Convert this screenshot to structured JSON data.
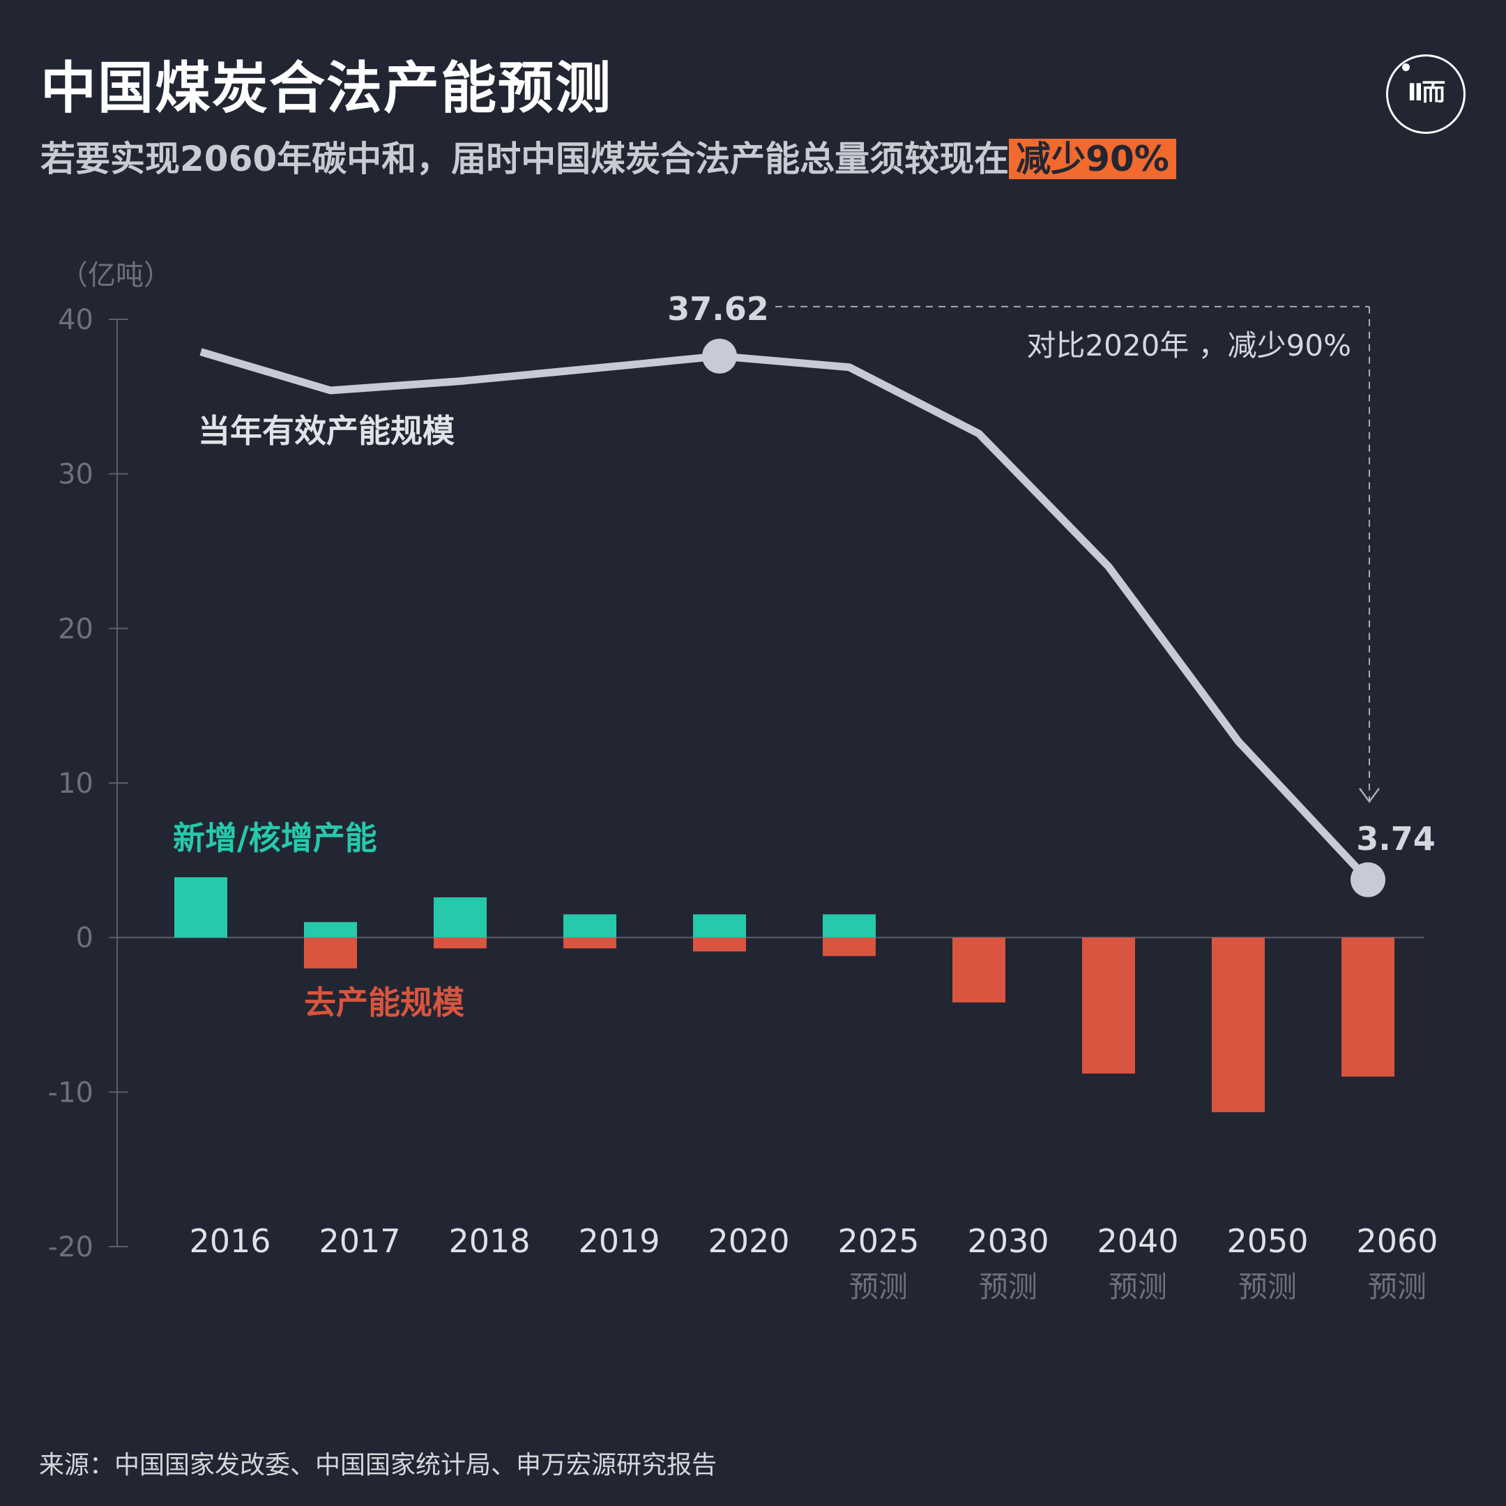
{
  "title": "中国煤炭合法产能预测",
  "subtitle": {
    "text": "若要实现2060年碳中和，届时中国煤炭合法产能总量须较现在",
    "highlight": "减少90%"
  },
  "logo": {
    "text": "Ⅱ而"
  },
  "source": "来源：中国国家发改委、中国国家统计局、申万宏源研究报告",
  "colors": {
    "background": "#222632",
    "line": "#c7cbd6",
    "added": "#26c9ab",
    "removed": "#d9553f",
    "highlight": "#f26a2d"
  },
  "chart_data": {
    "type": "bar+line",
    "unit_label": "（亿吨）",
    "ylim": [
      -20,
      40
    ],
    "yticks": [
      "40",
      "30",
      "20",
      "10",
      "0",
      "-10",
      "-20"
    ],
    "categories": [
      "2016",
      "2017",
      "2018",
      "2019",
      "2020",
      "2025",
      "2030",
      "2040",
      "2050",
      "2060"
    ],
    "sublabels": [
      "",
      "",
      "",
      "",
      "",
      "预测",
      "预测",
      "预测",
      "预测",
      "预测"
    ],
    "series": [
      {
        "name": "当年有效产能规模",
        "type": "line",
        "values": [
          37.9,
          35.4,
          36.0,
          36.8,
          37.62,
          36.9,
          32.6,
          24.0,
          12.7,
          3.74
        ]
      },
      {
        "name": "新增/核增产能",
        "type": "bar",
        "values": [
          3.9,
          1.0,
          2.6,
          1.5,
          1.5,
          1.5,
          0,
          0,
          0,
          0
        ]
      },
      {
        "name": "去产能规模",
        "type": "bar",
        "values": [
          0,
          -2.0,
          -0.7,
          -0.7,
          -0.9,
          -1.2,
          -4.2,
          -8.8,
          -11.3,
          -9.0
        ]
      }
    ],
    "point_labels": [
      {
        "text": "37.62"
      },
      {
        "text": "3.74"
      }
    ],
    "annotation": "对比2020年  ，减少90%"
  }
}
